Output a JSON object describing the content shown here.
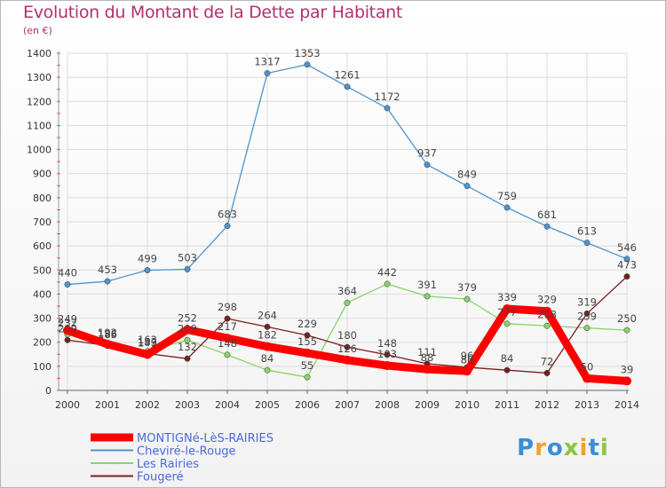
{
  "header": {
    "title": "Evolution du Montant de la Dette par Habitant",
    "subtitle": "(en €)"
  },
  "logo": {
    "letters": [
      "P",
      "r",
      "o",
      "x",
      "i",
      "t",
      "i"
    ],
    "colors": [
      "#3b8fd6",
      "#f0a030",
      "#3b8fd6",
      "#8cc63f",
      "#f0a030",
      "#3b8fd6",
      "#8cc63f"
    ]
  },
  "chart_data": {
    "type": "line",
    "categories": [
      "2000",
      "2001",
      "2002",
      "2003",
      "2004",
      "2005",
      "2006",
      "2007",
      "2008",
      "2009",
      "2010",
      "2011",
      "2012",
      "2013",
      "2014"
    ],
    "ylim": [
      0,
      1400
    ],
    "yticks": [
      "0",
      "100",
      "200",
      "300",
      "400",
      "500",
      "600",
      "700",
      "800",
      "900",
      "1000",
      "1100",
      "1200",
      "1300",
      "1400"
    ],
    "grid": true,
    "legend_position": "bottom-left",
    "series": [
      {
        "name": "MONTIGNé-LèS-RAIRIES",
        "color": "#ff0000",
        "values": [
          249,
          192,
          149,
          252,
          217,
          182,
          155,
          126,
          103,
          88,
          80,
          339,
          329,
          50,
          39
        ],
        "labels": [
          "249",
          "192",
          "149",
          "252",
          "217",
          "182",
          "155",
          "126",
          "103",
          "88",
          "80",
          "339",
          "329",
          "50",
          "39"
        ]
      },
      {
        "name": "Cheviré-le-Rouge",
        "color": "#4f94cd",
        "values": [
          440,
          453,
          499,
          503,
          683,
          1317,
          1353,
          1261,
          1172,
          937,
          849,
          759,
          681,
          613,
          546
        ],
        "labels": [
          "440",
          "453",
          "499",
          "503",
          "683",
          "1317",
          "1353",
          "1261",
          "1172",
          "937",
          "849",
          "759",
          "681",
          "613",
          "546"
        ]
      },
      {
        "name": "Les Rairies",
        "color": "#88d468",
        "values": [
          232,
          185,
          163,
          209,
          148,
          84,
          55,
          364,
          442,
          391,
          379,
          277,
          268,
          259,
          250
        ],
        "labels": [
          "232",
          "185",
          "163",
          "209",
          "148",
          "84",
          "55",
          "364",
          "442",
          "391",
          "379",
          "277",
          "268",
          "259",
          "250"
        ]
      },
      {
        "name": "Fougeré",
        "color": "#7a1f1f",
        "values": [
          209,
          186,
          153,
          132,
          298,
          264,
          229,
          180,
          148,
          111,
          96,
          84,
          72,
          319,
          473
        ],
        "labels": [
          "209",
          "186",
          "153",
          "132",
          "298",
          "264",
          "229",
          "180",
          "148",
          "111",
          "96",
          "84",
          "72",
          "319",
          "473"
        ]
      }
    ]
  }
}
